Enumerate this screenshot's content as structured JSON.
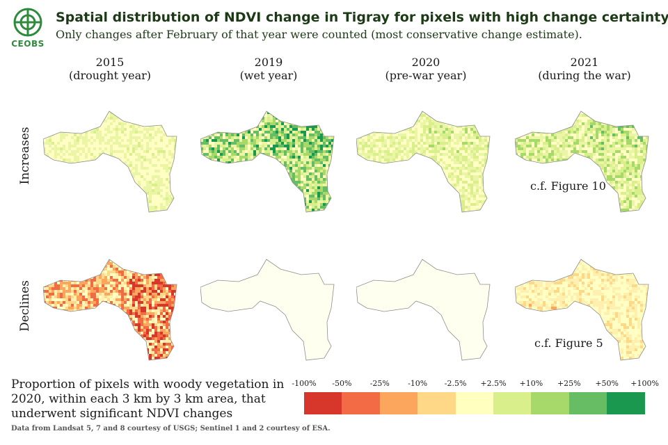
{
  "header": {
    "logo_text": "CEOBS",
    "title": "Spatial distribution of NDVI change in Tigray for pixels with high change certainty",
    "subtitle": "Only changes after February of that year were counted (most conservative change estimate)."
  },
  "columns": [
    {
      "year": "2015",
      "note": "(drought year)"
    },
    {
      "year": "2019",
      "note": "(wet year)"
    },
    {
      "year": "2020",
      "note": "(pre-war year)"
    },
    {
      "year": "2021",
      "note": "(during the war)"
    }
  ],
  "rows": [
    {
      "label": "Increases",
      "intensity": [
        0.35,
        0.85,
        0.45,
        0.6
      ]
    },
    {
      "label": "Declines",
      "intensity": [
        0.8,
        0.1,
        0.12,
        0.4
      ]
    }
  ],
  "references": {
    "increases_2021": "c.f. Figure 10",
    "declines_2021": "c.f. Figure 5"
  },
  "legend": {
    "description": "Proportion of pixels with woody vegetation in 2020, within each 3 km by 3 km area, that underwent significant NDVI changes",
    "ticks": [
      "-100%",
      "-50%",
      "-25%",
      "-10%",
      "-2.5%",
      "+2.5%",
      "+10%",
      "+25%",
      "+50%",
      "+100%"
    ],
    "colors": [
      "#d7362a",
      "#f26b45",
      "#fca55d",
      "#fed886",
      "#ffffbf",
      "#d9ef8b",
      "#a6d96a",
      "#66bd63",
      "#1a9850"
    ]
  },
  "source": "Data from Landsat 5, 7 and 8 courtesy of USGS; Sentinel 1 and 2 courtesy of ESA."
}
